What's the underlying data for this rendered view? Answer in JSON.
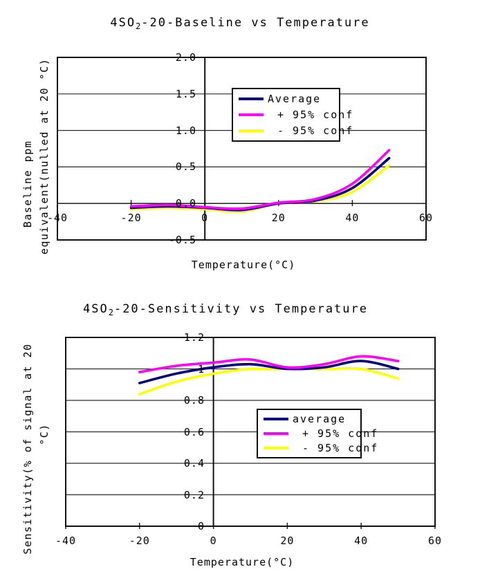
{
  "page": {
    "background": "#ffffff",
    "text_color": "#000000",
    "grid_color": "#2b2b2b",
    "axis_color": "#111111"
  },
  "chart_data": [
    {
      "type": "line",
      "smoothed": true,
      "title": "4SO2-20-Baseline vs Temperature",
      "title_parts": {
        "prefix": "4SO",
        "sub": "2",
        "suffix": "-20-Baseline vs Temperature"
      },
      "xlabel": "Temperature(°C)",
      "ylabel_line1": "Baseline ppm",
      "ylabel_line2": "equivalent(nulled at 20 °C)",
      "xlim": [
        -40,
        60
      ],
      "ylim": [
        -0.5,
        2.0
      ],
      "x_tick_values": [
        -40,
        -20,
        0,
        20,
        40,
        60
      ],
      "x_tick_labels": [
        "-40",
        "-20",
        "0",
        "20",
        "40",
        "60"
      ],
      "y_tick_values": [
        2.0,
        1.5,
        1.0,
        0.5,
        0.0,
        -0.5
      ],
      "y_tick_labels": [
        "2.0",
        "1.5",
        "1.0",
        "0.5",
        "0.0",
        "-0.5"
      ],
      "grid": true,
      "legend_position": "inside-upper-middle",
      "x": [
        -20,
        -10,
        0,
        10,
        20,
        30,
        40,
        50
      ],
      "series": [
        {
          "name": "Average",
          "color": "#000080",
          "values": [
            -0.06,
            -0.04,
            -0.06,
            -0.09,
            0.0,
            0.04,
            0.21,
            0.62
          ]
        },
        {
          "name": "+ 95% conf",
          "color": "#FF00FF",
          "values": [
            -0.04,
            -0.02,
            -0.05,
            -0.07,
            0.01,
            0.06,
            0.27,
            0.73
          ]
        },
        {
          "name": "- 95% conf",
          "color": "#FFFF00",
          "values": [
            -0.08,
            -0.06,
            -0.08,
            -0.11,
            0.0,
            0.03,
            0.16,
            0.52
          ]
        }
      ]
    },
    {
      "type": "line",
      "smoothed": true,
      "title": "4SO2-20-Sensitivity vs Temperature",
      "title_parts": {
        "prefix": "4SO",
        "sub": "2",
        "suffix": "-20-Sensitivity vs Temperature"
      },
      "xlabel": "Temperature(°C)",
      "ylabel_line1": "Sensitivity(% of signal at 20",
      "ylabel_line2": "°C)",
      "xlim": [
        -40,
        60
      ],
      "ylim": [
        0,
        1.2
      ],
      "x_tick_values": [
        -40,
        -20,
        0,
        20,
        40,
        60
      ],
      "x_tick_labels": [
        "-40",
        "-20",
        "0",
        "20",
        "40",
        "60"
      ],
      "y_tick_values": [
        1.2,
        1.0,
        0.8,
        0.6,
        0.4,
        0.2,
        0
      ],
      "y_tick_labels": [
        "1.2",
        "1",
        "0.8",
        "0.6",
        "0.4",
        "0.2",
        "0"
      ],
      "grid": true,
      "legend_position": "inside-middle",
      "x": [
        -20,
        -10,
        0,
        10,
        20,
        30,
        40,
        50
      ],
      "series": [
        {
          "name": "average",
          "color": "#000080",
          "values": [
            0.91,
            0.97,
            1.01,
            1.03,
            1.0,
            1.01,
            1.05,
            1.0
          ]
        },
        {
          "name": "+ 95% conf",
          "color": "#FF00FF",
          "values": [
            0.98,
            1.02,
            1.04,
            1.06,
            1.01,
            1.03,
            1.08,
            1.05
          ]
        },
        {
          "name": "- 95% conf",
          "color": "#FFFF00",
          "values": [
            0.84,
            0.92,
            0.97,
            1.0,
            1.0,
            1.0,
            1.0,
            0.94
          ]
        }
      ]
    }
  ]
}
